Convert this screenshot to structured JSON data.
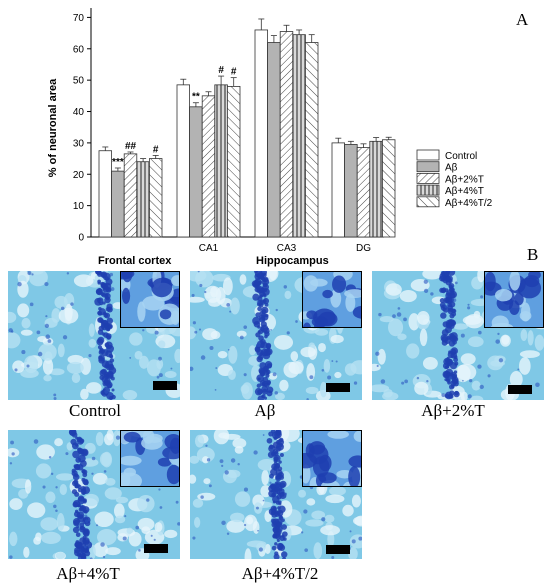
{
  "panel_a_letter": "A",
  "panel_b_letter": "B",
  "colors": {
    "bar_edge": "#333333",
    "bar_fill_control": "#ffffff",
    "bar_fill_abeta": "#b3b3b3",
    "stain_bg": "#7fc8e6",
    "stain_dark": "#1e3fb0"
  },
  "chart_data": {
    "type": "bar",
    "ylabel": "% of neuronal area",
    "ylim": [
      0,
      73
    ],
    "yticks": [
      0,
      10,
      20,
      30,
      40,
      50,
      60,
      70
    ],
    "categories": [
      "",
      "CA1",
      "CA3",
      "DG"
    ],
    "series": [
      {
        "name": "Control",
        "pattern": "white",
        "values": [
          27.5,
          48.5,
          66,
          30
        ],
        "errors": [
          1.2,
          1.8,
          3.5,
          1.5
        ]
      },
      {
        "name": "Aβ",
        "pattern": "gray",
        "values": [
          21,
          41.5,
          62,
          29.5
        ],
        "errors": [
          1.0,
          1.3,
          2.2,
          1.0
        ]
      },
      {
        "name": "Aβ+2%T",
        "pattern": "diag",
        "values": [
          26.5,
          45,
          65.5,
          28.5
        ],
        "errors": [
          0.6,
          1.3,
          2.0,
          1.2
        ]
      },
      {
        "name": "Aβ+4%T",
        "pattern": "vert",
        "values": [
          24,
          48.5,
          64.5,
          30.5
        ],
        "errors": [
          1.0,
          2.8,
          1.5,
          1.2
        ]
      },
      {
        "name": "Aβ+4%T/2",
        "pattern": "diag2",
        "values": [
          25,
          48,
          62,
          31
        ],
        "errors": [
          1.0,
          2.8,
          2.5,
          0.8
        ]
      }
    ],
    "annotations": [
      {
        "category": 0,
        "series": 1,
        "text": "***"
      },
      {
        "category": 0,
        "series": 2,
        "text": "##"
      },
      {
        "category": 0,
        "series": 4,
        "text": "#"
      },
      {
        "category": 1,
        "series": 1,
        "text": "**"
      },
      {
        "category": 1,
        "series": 3,
        "text": "#"
      },
      {
        "category": 1,
        "series": 4,
        "text": "#"
      }
    ],
    "legend_position": "right"
  },
  "panel_b": {
    "region_labels": [
      "Frontal cortex",
      "Hippocampus"
    ],
    "images": [
      {
        "caption": "Control"
      },
      {
        "caption": "Aβ"
      },
      {
        "caption": "Aβ+2%T"
      },
      {
        "caption": "Aβ+4%T"
      },
      {
        "caption": "Aβ+4%T/2"
      }
    ]
  }
}
